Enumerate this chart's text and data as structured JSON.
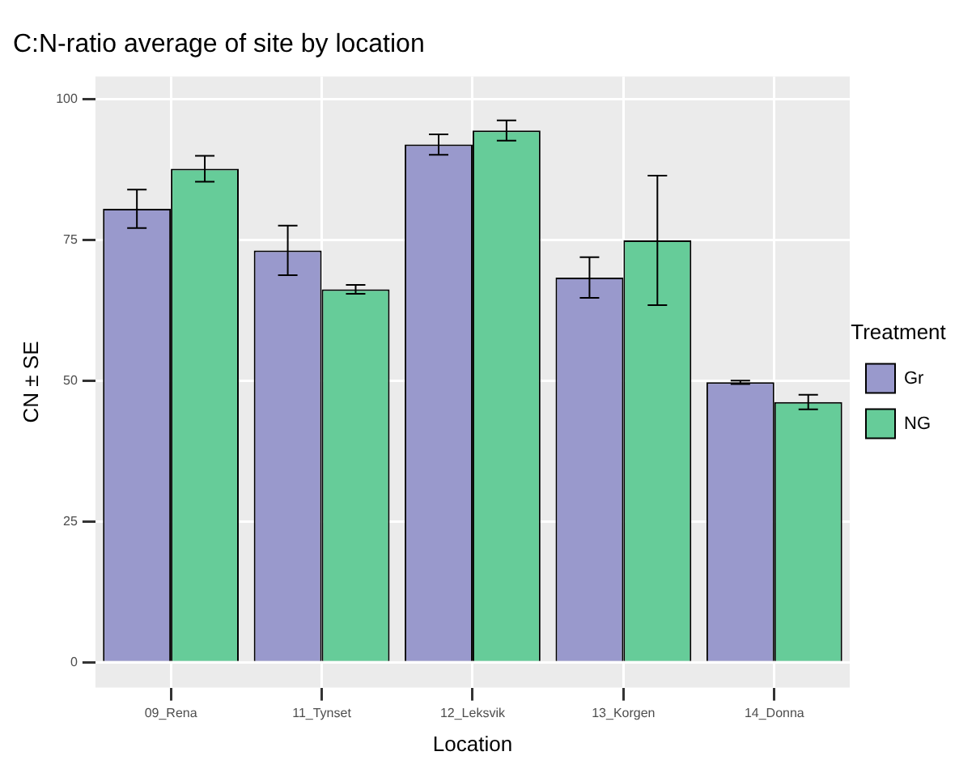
{
  "chart_data": {
    "type": "bar",
    "title": "C:N-ratio average of site by location",
    "xlabel": "Location",
    "ylabel": "CN ± SE",
    "legend_title": "Treatment",
    "categories": [
      "09_Rena",
      "11_Tynset",
      "12_Leksvik",
      "13_Korgen",
      "14_Donna"
    ],
    "series": [
      {
        "name": "Gr",
        "color": "#9999cc",
        "values": [
          80.5,
          73.1,
          91.9,
          68.3,
          49.7
        ],
        "errors": [
          3.4,
          4.4,
          1.8,
          3.6,
          0.3
        ]
      },
      {
        "name": "NG",
        "color": "#66cc99",
        "values": [
          87.6,
          66.2,
          94.4,
          74.9,
          46.2
        ],
        "errors": [
          2.3,
          0.8,
          1.8,
          11.5,
          1.3
        ]
      }
    ],
    "ylim": [
      -4.5,
      104
    ],
    "yticks": [
      0,
      25,
      50,
      75,
      100
    ],
    "grid": true,
    "legend": "right"
  }
}
